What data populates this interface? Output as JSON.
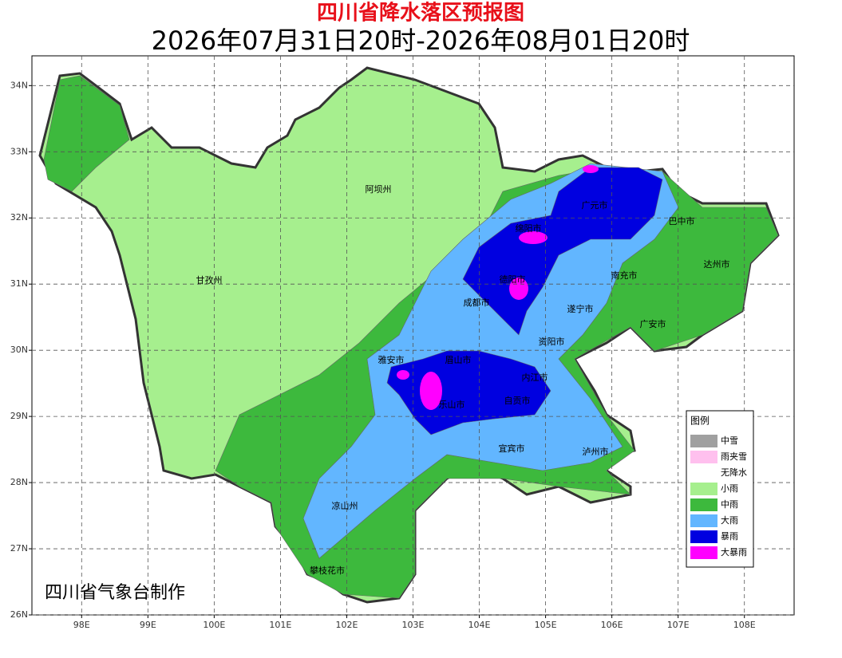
{
  "map": {
    "title": "四川省降水落区预报图",
    "subtitle": "2026年07月31日20时-2026年08月01日20时",
    "credit": "四川省气象台制作",
    "xlim": [
      97.25,
      108.75
    ],
    "ylim": [
      26,
      34.45
    ],
    "xticks": [
      {
        "value": 98,
        "label": "98E"
      },
      {
        "value": 99,
        "label": "99E"
      },
      {
        "value": 100,
        "label": "100E"
      },
      {
        "value": 101,
        "label": "101E"
      },
      {
        "value": 102,
        "label": "102E"
      },
      {
        "value": 103,
        "label": "103E"
      },
      {
        "value": 104,
        "label": "104E"
      },
      {
        "value": 105,
        "label": "105E"
      },
      {
        "value": 106,
        "label": "106E"
      },
      {
        "value": 107,
        "label": "107E"
      },
      {
        "value": 108,
        "label": "108E"
      }
    ],
    "yticks": [
      {
        "value": 26,
        "label": "26N"
      },
      {
        "value": 27,
        "label": "27N"
      },
      {
        "value": 28,
        "label": "28N"
      },
      {
        "value": 29,
        "label": "29N"
      },
      {
        "value": 30,
        "label": "30N"
      },
      {
        "value": 31,
        "label": "31N"
      },
      {
        "value": 32,
        "label": "32N"
      },
      {
        "value": 33,
        "label": "33N"
      },
      {
        "value": 34,
        "label": "34N"
      }
    ],
    "grid": true,
    "cities": [
      "阿坝州",
      "甘孜州",
      "绵阳市",
      "巴中市",
      "达州市",
      "南充市",
      "德阳市",
      "成都市",
      "遂宁市",
      "广安市",
      "资阳市",
      "雅安市",
      "眉山市",
      "内江市",
      "乐山市",
      "自贡市",
      "宜宾市",
      "泸州市",
      "凉山州",
      "攀枝花市",
      "广元市"
    ],
    "legend": {
      "title": "图例",
      "items": [
        {
          "label": "中雪",
          "color": "#a0a0a0"
        },
        {
          "label": "雨夹雪",
          "color": "#ffc0ee"
        },
        {
          "label": "无降水",
          "color": "#ffffff"
        },
        {
          "label": "小雨",
          "color": "#a6ef8e"
        },
        {
          "label": "中雨",
          "color": "#3db93d"
        },
        {
          "label": "大雨",
          "color": "#62b6ff"
        },
        {
          "label": "暴雨",
          "color": "#0000e0"
        },
        {
          "label": "大暴雨",
          "color": "#ff00ff"
        }
      ]
    }
  }
}
